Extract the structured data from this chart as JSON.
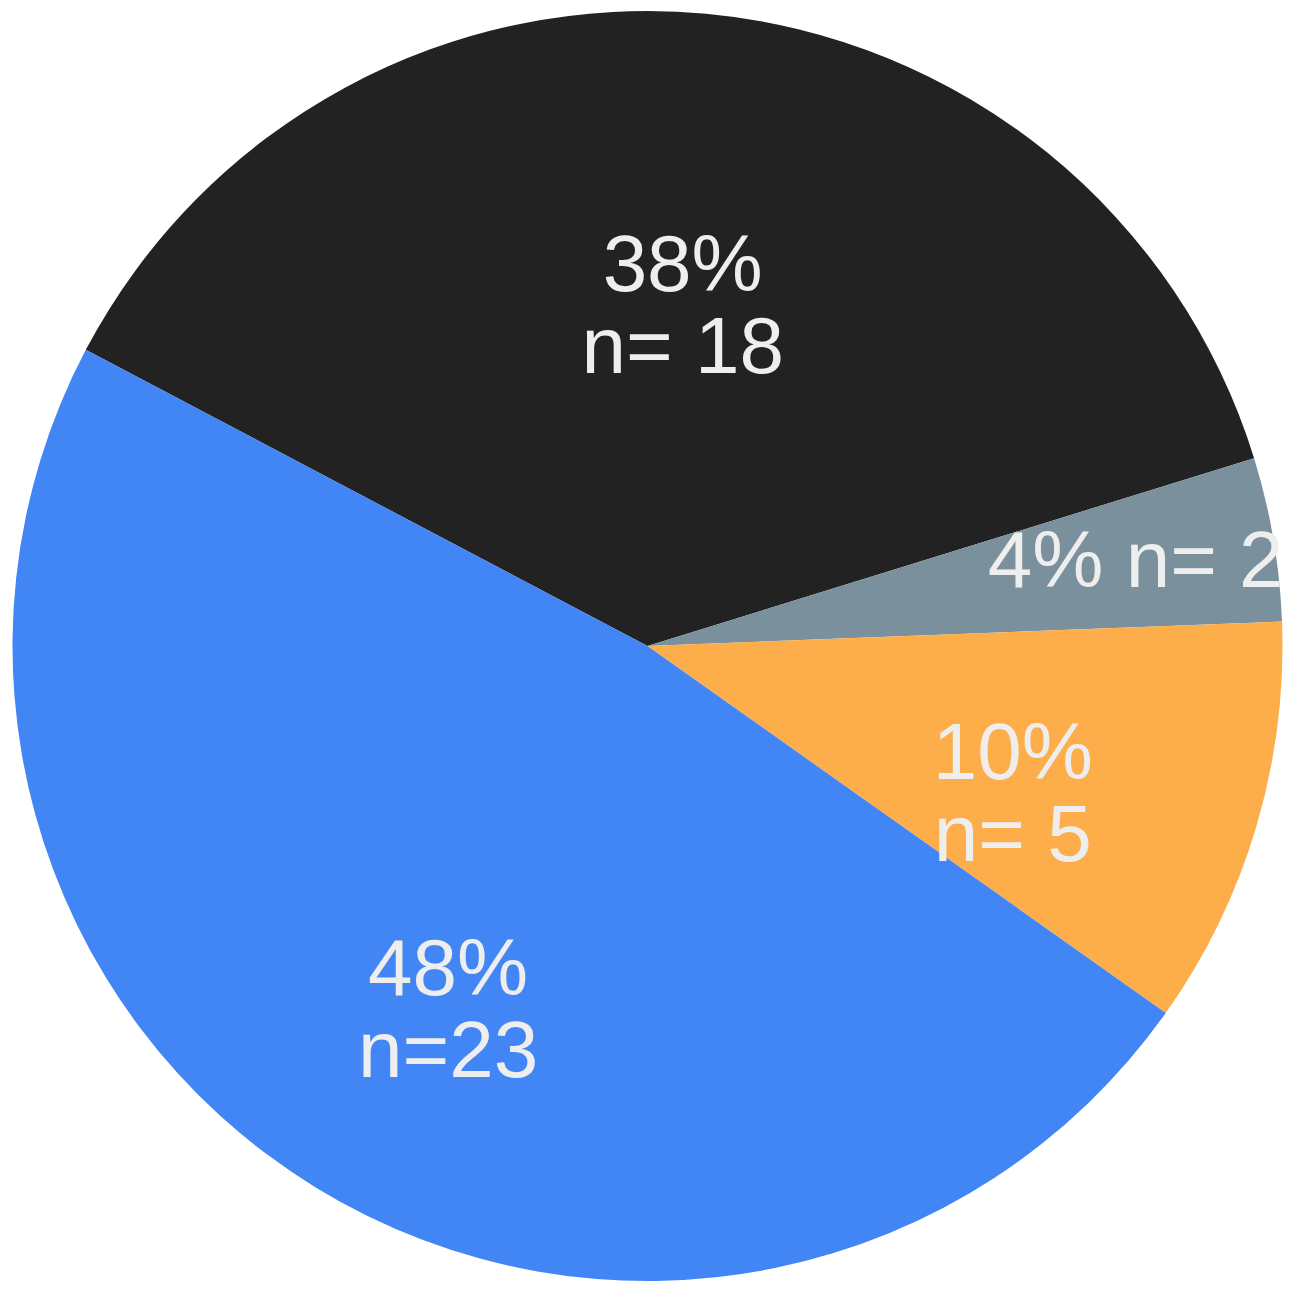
{
  "chart_data": {
    "type": "pie",
    "categories": [
      null,
      null,
      null,
      null
    ],
    "values": [
      18,
      2,
      5,
      23
    ],
    "colors": [
      "#222222",
      "#7a909c",
      "#fdae4b",
      "#4285f4"
    ],
    "value_labels": [
      "38%\nn= 18",
      "4% n= 2",
      "10%\nn= 5",
      "48%\nn=23"
    ]
  }
}
